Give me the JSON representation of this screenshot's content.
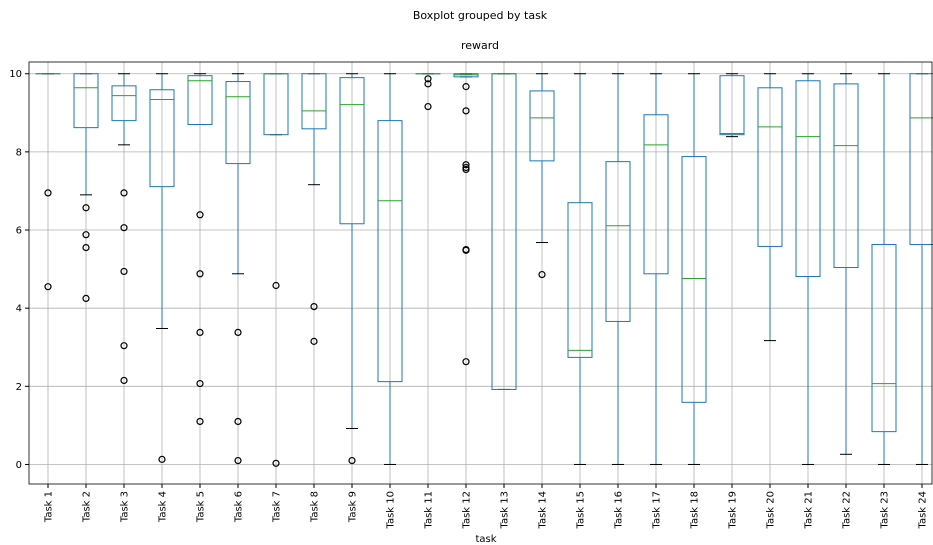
{
  "chart_data": {
    "type": "box",
    "title": "Boxplot grouped by task",
    "subtitle": "reward",
    "x_label": "task",
    "box_color": "#1f77b4",
    "median_color": "#2ca02c",
    "flier_color": "#000000",
    "grid": true,
    "ylim": [
      -0.5,
      10.3
    ],
    "yticks": [
      0,
      2,
      4,
      6,
      8,
      10
    ],
    "categories": [
      "Task 1",
      "Task 2",
      "Task 3",
      "Task 4",
      "Task 5",
      "Task 6",
      "Task 7",
      "Task 8",
      "Task 9",
      "Task 10",
      "Task 11",
      "Task 12",
      "Task 13",
      "Task 14",
      "Task 15",
      "Task 16",
      "Task 17",
      "Task 18",
      "Task 19",
      "Task 20",
      "Task 21",
      "Task 22",
      "Task 23",
      "Task 24"
    ],
    "boxes": [
      {
        "whislo": 10,
        "q1": 10,
        "med": 10,
        "q3": 10,
        "whishi": 10,
        "fliers": [
          6.95,
          4.55
        ]
      },
      {
        "whislo": 6.9,
        "q1": 8.62,
        "med": 9.64,
        "q3": 10,
        "whishi": 10,
        "fliers": [
          6.57,
          5.88,
          5.55,
          4.25
        ]
      },
      {
        "whislo": 8.18,
        "q1": 8.8,
        "med": 9.44,
        "q3": 9.69,
        "whishi": 10,
        "fliers": [
          6.95,
          6.06,
          4.94,
          3.04,
          2.15
        ]
      },
      {
        "whislo": 3.48,
        "q1": 7.11,
        "med": 9.34,
        "q3": 9.59,
        "whishi": 10,
        "fliers": [
          0.13
        ]
      },
      {
        "whislo": 8.7,
        "q1": 8.7,
        "med": 9.82,
        "q3": 9.95,
        "whishi": 10,
        "fliers": [
          6.39,
          4.88,
          3.38,
          2.07,
          1.1
        ]
      },
      {
        "whislo": 4.88,
        "q1": 7.7,
        "med": 9.41,
        "q3": 9.8,
        "whishi": 10,
        "fliers": [
          3.38,
          1.1,
          0.1
        ]
      },
      {
        "whislo": 8.44,
        "q1": 8.44,
        "med": 10,
        "q3": 10,
        "whishi": 10,
        "fliers": [
          4.58,
          0.03
        ]
      },
      {
        "whislo": 7.16,
        "q1": 8.59,
        "med": 9.05,
        "q3": 10,
        "whishi": 10,
        "fliers": [
          4.04,
          3.15
        ]
      },
      {
        "whislo": 0.92,
        "q1": 6.16,
        "med": 9.21,
        "q3": 9.9,
        "whishi": 10,
        "fliers": [
          0.1
        ]
      },
      {
        "whislo": 0,
        "q1": 2.12,
        "med": 6.75,
        "q3": 8.8,
        "whishi": 10,
        "fliers": []
      },
      {
        "whislo": 10,
        "q1": 10,
        "med": 10,
        "q3": 10,
        "whishi": 10,
        "fliers": [
          9.87,
          9.74,
          9.16
        ]
      },
      {
        "whislo": 9.92,
        "q1": 9.92,
        "med": 9.97,
        "q3": 10,
        "whishi": 10,
        "fliers": [
          9.67,
          9.05,
          7.67,
          7.6,
          7.55,
          5.5,
          5.48,
          2.63
        ]
      },
      {
        "whislo": 1.92,
        "q1": 1.92,
        "med": 10,
        "q3": 10,
        "whishi": 10,
        "fliers": []
      },
      {
        "whislo": 5.68,
        "q1": 7.77,
        "med": 8.87,
        "q3": 9.56,
        "whishi": 10,
        "fliers": [
          4.86
        ]
      },
      {
        "whislo": 0,
        "q1": 2.74,
        "med": 2.92,
        "q3": 6.7,
        "whishi": 10,
        "fliers": []
      },
      {
        "whislo": 0,
        "q1": 3.66,
        "med": 6.11,
        "q3": 7.75,
        "whishi": 10,
        "fliers": []
      },
      {
        "whislo": 0,
        "q1": 4.88,
        "med": 8.18,
        "q3": 8.95,
        "whishi": 10,
        "fliers": []
      },
      {
        "whislo": 0,
        "q1": 1.59,
        "med": 4.76,
        "q3": 7.88,
        "whishi": 10,
        "fliers": []
      },
      {
        "whislo": 8.39,
        "q1": 8.44,
        "med": 8.47,
        "q3": 9.95,
        "whishi": 10,
        "fliers": []
      },
      {
        "whislo": 3.17,
        "q1": 5.58,
        "med": 8.64,
        "q3": 9.64,
        "whishi": 10,
        "fliers": []
      },
      {
        "whislo": 0,
        "q1": 4.81,
        "med": 8.39,
        "q3": 9.82,
        "whishi": 10,
        "fliers": []
      },
      {
        "whislo": 0.26,
        "q1": 5.04,
        "med": 8.16,
        "q3": 9.74,
        "whishi": 10,
        "fliers": []
      },
      {
        "whislo": 0,
        "q1": 0.84,
        "med": 2.07,
        "q3": 5.63,
        "whishi": 10,
        "fliers": []
      },
      {
        "whislo": 0,
        "q1": 5.63,
        "med": 8.87,
        "q3": 10,
        "whishi": 10,
        "fliers": []
      }
    ]
  }
}
